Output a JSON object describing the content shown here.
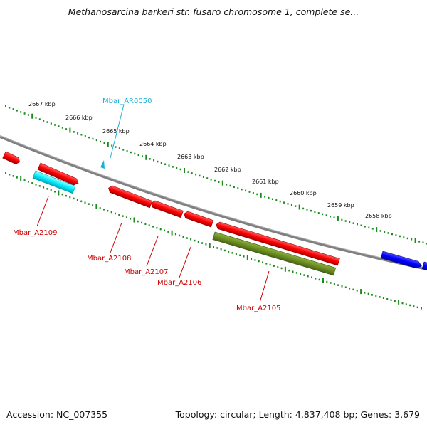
{
  "title": "Methanosarcina barkeri str. fusaro chromosome 1, complete se...",
  "footer": {
    "accession": "Accession: NC_007355",
    "summary": "Topology: circular; Length: 4,837,408 bp; Genes: 3,679"
  },
  "scale_labels": [
    "2667 kbp",
    "2666 kbp",
    "2665 kbp",
    "2664 kbp",
    "2663 kbp",
    "2662 kbp",
    "2661 kbp",
    "2660 kbp",
    "2659 kbp",
    "2658 kbp"
  ],
  "gene_labels": {
    "ar0050": "Mbar_AR0050",
    "a2109": "Mbar_A2109",
    "a2108": "Mbar_A2108",
    "a2107": "Mbar_A2107",
    "a2106": "Mbar_A2106",
    "a2105": "Mbar_A2105"
  },
  "colors": {
    "backbone": "#808080",
    "tick": "#1a8c1a",
    "cds_red": "#ff0000",
    "trna_cyan": "#00e5ee",
    "olive": "#6b8e23",
    "blue": "#0000ff",
    "label_red": "#cc0000",
    "label_cyan": "#1ab0d8"
  }
}
